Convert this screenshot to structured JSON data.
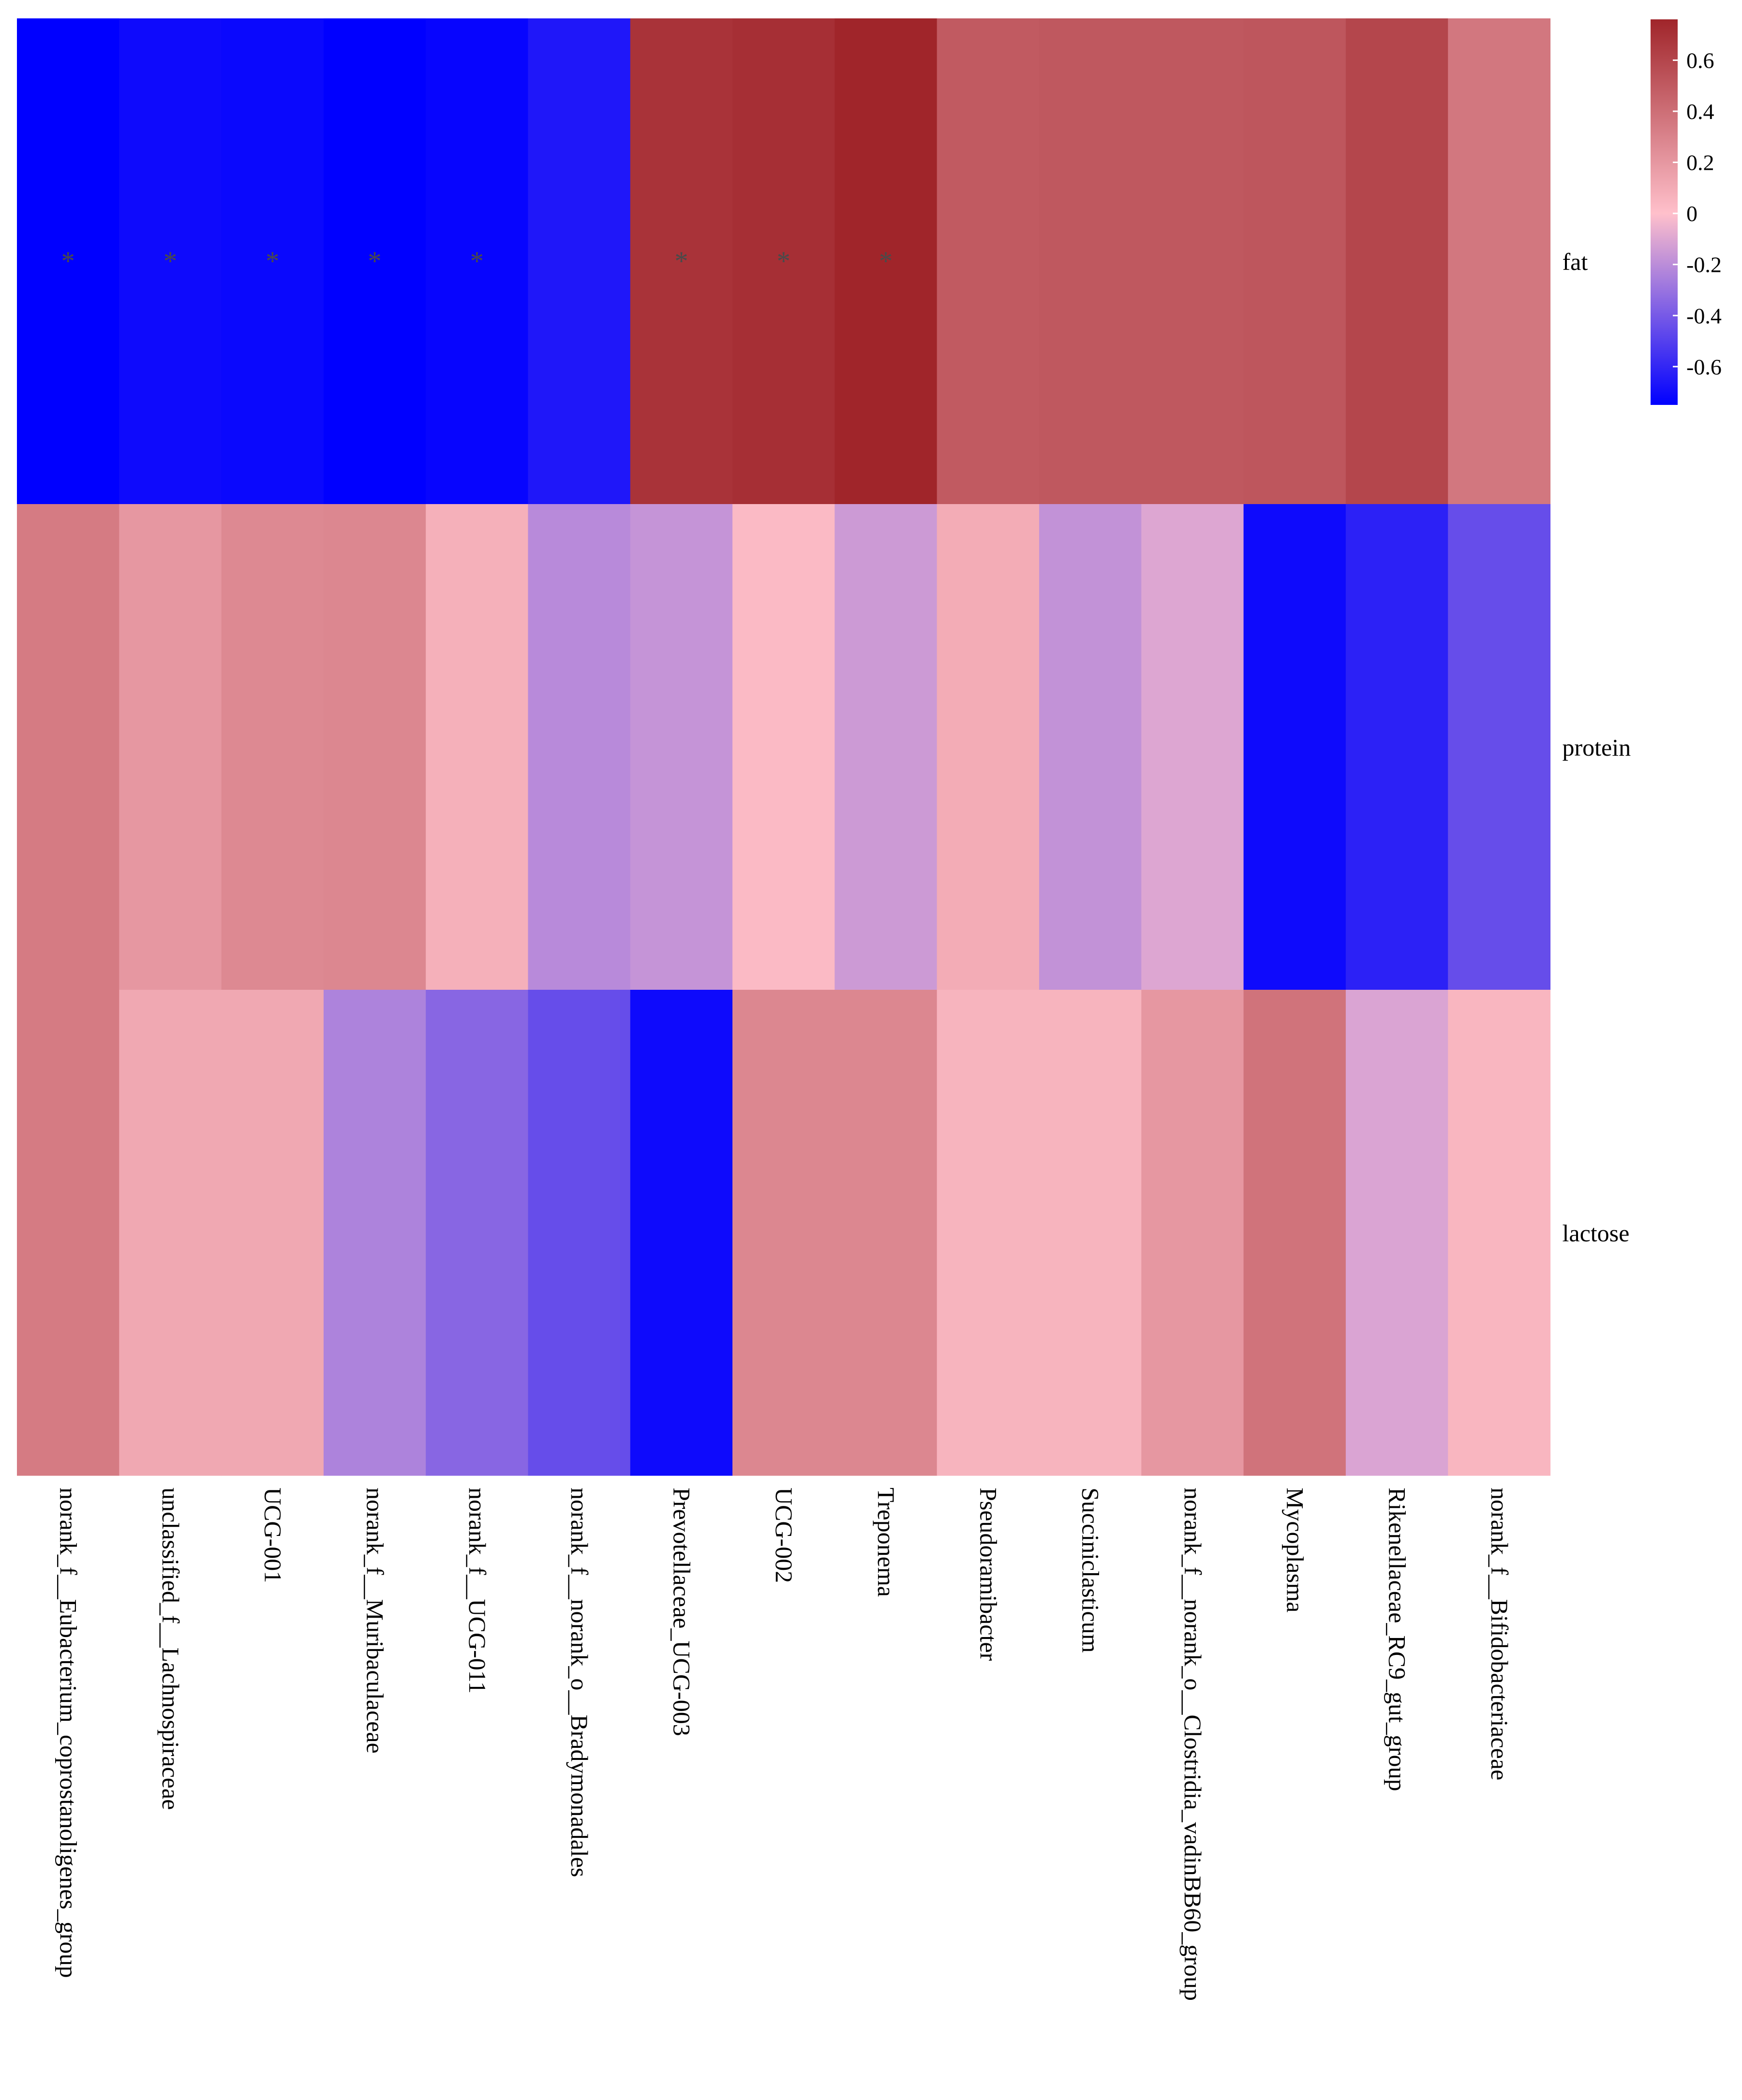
{
  "chart_data": {
    "type": "heatmap",
    "title": "",
    "rows": [
      "fat",
      "protein",
      "lactose"
    ],
    "columns": [
      "norank_f__Eubacterium_coprostanoligenes_group",
      "unclassified_f__Lachnospiraceae",
      "UCG-001",
      "norank_f__Muribaculaceae",
      "norank_f__UCG-011",
      "norank_f__norank_o__Bradymonadales",
      "Prevotellaceae_UCG-003",
      "UCG-002",
      "Treponema",
      "Pseudoramibacter",
      "Succiniclasticum",
      "norank_f__norank_o__Clostridia_vadinBB60_group",
      "Mycoplasma",
      "Rikenellaceae_RC9_gut_group",
      "norank_f__Bifidobacteriaceae"
    ],
    "values": [
      [
        -0.75,
        -0.71,
        -0.72,
        -0.75,
        -0.73,
        -0.66,
        0.69,
        0.71,
        0.76,
        0.5,
        0.51,
        0.51,
        0.52,
        0.6,
        0.36
      ],
      [
        0.34,
        0.2,
        0.27,
        0.28,
        0.08,
        -0.21,
        -0.17,
        0.03,
        -0.15,
        0.1,
        -0.18,
        -0.1,
        -0.71,
        -0.62,
        -0.45
      ],
      [
        0.34,
        0.12,
        0.12,
        -0.24,
        -0.35,
        -0.45,
        -0.71,
        0.28,
        0.28,
        0.06,
        0.06,
        0.2,
        0.38,
        -0.11,
        0.05
      ]
    ],
    "significance": [
      [
        "*",
        "*",
        "*",
        "*",
        "*",
        "",
        "*",
        "*",
        "*",
        "",
        "",
        "",
        "",
        "",
        ""
      ],
      [
        "",
        "",
        "",
        "",
        "",
        "",
        "",
        "",
        "",
        "",
        "",
        "",
        "",
        "",
        ""
      ],
      [
        "",
        "",
        "",
        "",
        "",
        "",
        "",
        "",
        "",
        "",
        "",
        "",
        "",
        "",
        ""
      ]
    ],
    "colorbar": {
      "range": [
        -0.75,
        0.76
      ],
      "ticks": [
        0.6,
        0.4,
        0.2,
        0,
        -0.2,
        -0.4,
        -0.6
      ],
      "tick_labels": [
        "0.6",
        "0.4",
        "0.2",
        "0",
        "-0.2",
        "-0.4",
        "-0.6"
      ],
      "colors": {
        "low": "#0000FF",
        "mid": "#FFC0CB",
        "high": "#A0252A"
      }
    }
  }
}
